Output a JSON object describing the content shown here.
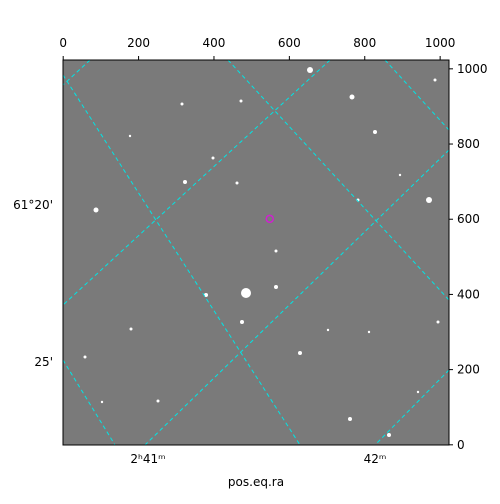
{
  "chart_data": {
    "type": "image",
    "xlabel": "pos.eq.ra",
    "xlim": [
      -0.5,
      1023.5
    ],
    "ylim": [
      -0.5,
      1023.5
    ],
    "xticks": [
      0,
      200,
      400,
      600,
      800,
      1000
    ],
    "yticks": [
      0,
      200,
      400,
      600,
      800,
      1000
    ],
    "ra_labels": [
      "2ʰ41ᵐ",
      "42ᵐ"
    ],
    "dec_labels": [
      "61°20'",
      "25'"
    ],
    "marker": {
      "x": 548,
      "y": 601,
      "color": "#d020d0"
    },
    "grid_color": "#00e5e5"
  }
}
